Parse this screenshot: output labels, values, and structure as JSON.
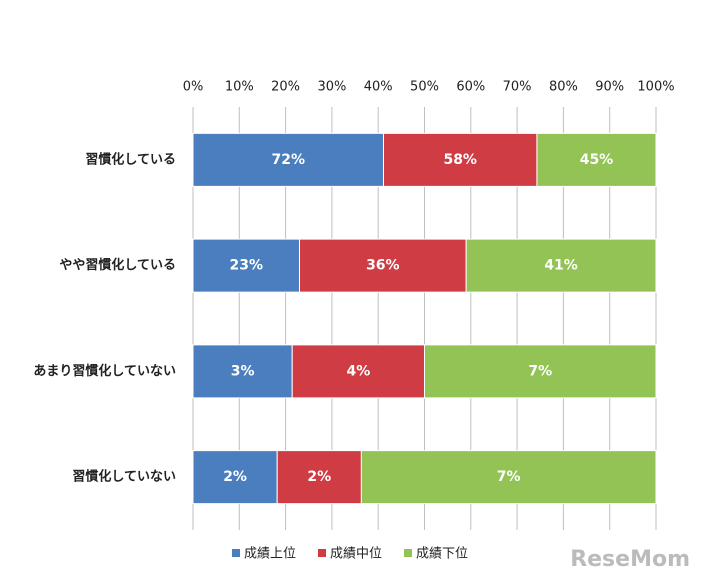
{
  "chart_data": {
    "type": "bar",
    "orientation": "horizontal",
    "stacked": "percent",
    "categories": [
      "習慣化している",
      "やや習慣化している",
      "あまり習慣化していない",
      "習慣化していない"
    ],
    "series": [
      {
        "name": "成績上位",
        "color": "#4a7ebf",
        "values": [
          72,
          23,
          3,
          2
        ],
        "value_labels": [
          "72%",
          "23%",
          "3%",
          "2%"
        ]
      },
      {
        "name": "成績中位",
        "color": "#cf3c44",
        "values": [
          58,
          36,
          4,
          2
        ],
        "value_labels": [
          "58%",
          "36%",
          "4%",
          "2%"
        ]
      },
      {
        "name": "成績下位",
        "color": "#93c354",
        "values": [
          45,
          41,
          7,
          7
        ],
        "value_labels": [
          "45%",
          "41%",
          "7%",
          "7%"
        ]
      }
    ],
    "xlim": [
      0,
      100
    ],
    "xticks": [
      {
        "value": 0,
        "label": "0%"
      },
      {
        "value": 10,
        "label": "10%"
      },
      {
        "value": 20,
        "label": "20%"
      },
      {
        "value": 30,
        "label": "30%"
      },
      {
        "value": 40,
        "label": "40%"
      },
      {
        "value": 50,
        "label": "50%"
      },
      {
        "value": 60,
        "label": "60%"
      },
      {
        "value": 70,
        "label": "70%"
      },
      {
        "value": 80,
        "label": "80%"
      },
      {
        "value": 90,
        "label": "90%"
      },
      {
        "value": 100,
        "label": "100%"
      }
    ],
    "grid": true,
    "legend": "bottom",
    "watermark": "ReseMom"
  }
}
